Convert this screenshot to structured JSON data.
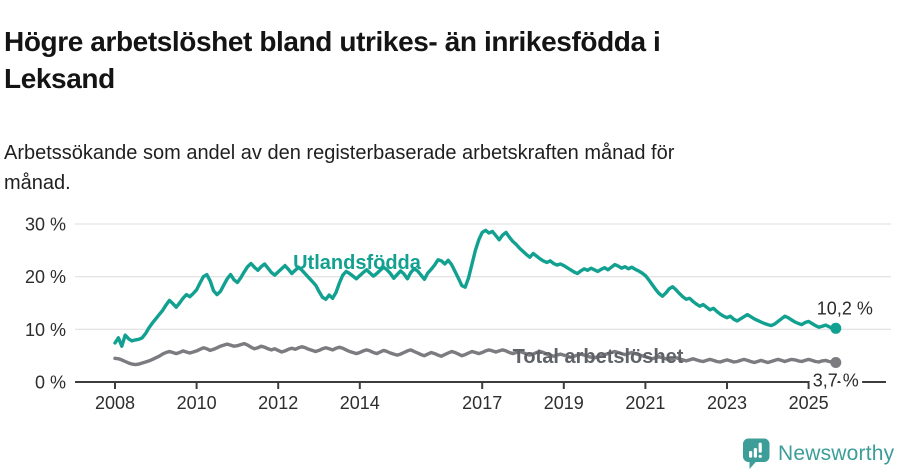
{
  "header": {
    "title_line1": "Högre arbetslöshet bland utrikes- än inrikesfödda i",
    "title_line2": "Leksand",
    "subtitle_line1": "Arbetssökande som andel av den registerbaserade arbetskraften månad för",
    "subtitle_line2": "månad."
  },
  "footer": {
    "brand": "Newsworthy",
    "logo_icon": "bar-chart-speech-bubble",
    "brand_color": "#3C9D99"
  },
  "colors": {
    "teal_series": "#12a190",
    "gray_series": "#7b7b80",
    "gray_label": "#5f6269",
    "grid": "#dcdcdc",
    "axis": "#3d3d3d",
    "text": "#141414"
  },
  "chart_data": {
    "type": "line",
    "title": "Högre arbetslöshet bland utrikes- än inrikesfödda i Leksand",
    "subtitle": "Arbetssökande som andel av den registerbaserade arbetskraften månad för månad.",
    "xlabel": "",
    "ylabel": "",
    "x_start_year": 2008,
    "interval_months": 1,
    "x_range": [
      2008.0,
      2025.67
    ],
    "ylim": [
      0,
      32
    ],
    "grid": "horizontal",
    "legend_position": "inline-labels",
    "x_ticks": [
      {
        "value": 2008,
        "label": "2008"
      },
      {
        "value": 2010,
        "label": "2010"
      },
      {
        "value": 2012,
        "label": "2012"
      },
      {
        "value": 2014,
        "label": "2014"
      },
      {
        "value": 2017,
        "label": "2017"
      },
      {
        "value": 2019,
        "label": "2019"
      },
      {
        "value": 2021,
        "label": "2021"
      },
      {
        "value": 2023,
        "label": "2023"
      },
      {
        "value": 2025,
        "label": "2025"
      }
    ],
    "y_ticks": [
      {
        "value": 0,
        "label": "0 %"
      },
      {
        "value": 10,
        "label": "10 %"
      },
      {
        "value": 20,
        "label": "20 %"
      },
      {
        "value": 30,
        "label": "30 %"
      }
    ],
    "series": [
      {
        "name": "Utlandsfödda",
        "color": "#12a190",
        "label_color": "#12a190",
        "end_label": "10,2 %",
        "end_value": 10.2,
        "values": [
          7.4,
          8.4,
          6.8,
          8.9,
          8.2,
          7.8,
          8.0,
          8.1,
          8.4,
          9.2,
          10.3,
          11.2,
          12.0,
          12.8,
          13.6,
          14.6,
          15.5,
          14.9,
          14.2,
          15.0,
          15.9,
          16.6,
          16.2,
          16.8,
          17.5,
          18.8,
          20.0,
          20.4,
          19.2,
          17.3,
          16.6,
          17.2,
          18.4,
          19.6,
          20.4,
          19.4,
          18.9,
          19.8,
          20.9,
          21.9,
          22.5,
          21.8,
          21.2,
          21.9,
          22.4,
          21.6,
          20.8,
          20.3,
          20.9,
          21.5,
          22.1,
          21.4,
          20.6,
          21.2,
          21.8,
          21.2,
          20.5,
          19.8,
          19.1,
          18.4,
          17.2,
          16.1,
          15.7,
          16.5,
          15.9,
          17.0,
          18.8,
          20.3,
          21.0,
          20.6,
          20.1,
          19.6,
          20.2,
          20.8,
          21.3,
          20.7,
          20.1,
          20.6,
          21.2,
          21.8,
          21.3,
          20.6,
          19.7,
          20.4,
          21.1,
          20.5,
          19.6,
          20.8,
          21.5,
          21.1,
          20.3,
          19.5,
          20.7,
          21.4,
          22.2,
          23.2,
          23.0,
          22.4,
          23.1,
          22.3,
          21.0,
          19.7,
          18.3,
          18.0,
          19.8,
          22.4,
          25.0,
          27.0,
          28.4,
          28.8,
          28.3,
          28.6,
          27.8,
          27.0,
          27.9,
          28.4,
          27.5,
          26.7,
          26.1,
          25.4,
          24.8,
          24.2,
          23.7,
          24.4,
          23.9,
          23.4,
          23.0,
          22.7,
          23.0,
          22.5,
          22.2,
          22.4,
          22.1,
          21.7,
          21.3,
          20.9,
          20.6,
          21.1,
          21.5,
          21.2,
          21.6,
          21.3,
          21.0,
          21.4,
          21.7,
          21.3,
          21.8,
          22.3,
          22.0,
          21.6,
          21.9,
          21.5,
          21.8,
          21.4,
          21.1,
          20.7,
          20.2,
          19.4,
          18.5,
          17.6,
          16.8,
          16.3,
          16.9,
          17.7,
          18.1,
          17.5,
          16.8,
          16.2,
          15.7,
          15.9,
          15.3,
          14.8,
          14.4,
          14.7,
          14.2,
          13.7,
          14.0,
          13.4,
          12.9,
          12.5,
          12.2,
          12.5,
          11.9,
          11.6,
          12.0,
          12.4,
          12.8,
          12.4,
          12.0,
          11.7,
          11.4,
          11.1,
          10.9,
          10.7,
          11.0,
          11.5,
          12.0,
          12.5,
          12.2,
          11.8,
          11.4,
          11.1,
          10.9,
          11.3,
          11.5,
          11.1,
          10.7,
          10.4,
          10.6,
          10.8,
          10.5,
          10.2,
          10.2
        ]
      },
      {
        "name": "Total arbetslöshet",
        "color": "#7b7b80",
        "label_color": "#5f6269",
        "end_label": "3,7 %",
        "end_value": 3.7,
        "values": [
          4.5,
          4.4,
          4.2,
          3.9,
          3.6,
          3.4,
          3.3,
          3.4,
          3.6,
          3.8,
          4.0,
          4.3,
          4.6,
          4.9,
          5.3,
          5.6,
          5.8,
          5.6,
          5.4,
          5.6,
          5.9,
          5.7,
          5.5,
          5.7,
          5.9,
          6.2,
          6.5,
          6.3,
          6.0,
          6.2,
          6.5,
          6.8,
          7.0,
          7.2,
          7.0,
          6.8,
          6.9,
          7.1,
          7.3,
          7.0,
          6.6,
          6.3,
          6.5,
          6.8,
          6.6,
          6.3,
          6.1,
          6.3,
          6.0,
          5.7,
          5.9,
          6.2,
          6.4,
          6.2,
          6.5,
          6.7,
          6.5,
          6.2,
          6.0,
          5.8,
          6.0,
          6.3,
          6.5,
          6.3,
          6.1,
          6.4,
          6.6,
          6.4,
          6.1,
          5.8,
          5.6,
          5.4,
          5.6,
          5.9,
          6.1,
          5.9,
          5.6,
          5.4,
          5.7,
          6.0,
          5.8,
          5.5,
          5.3,
          5.1,
          5.3,
          5.6,
          5.9,
          6.1,
          5.8,
          5.5,
          5.2,
          5.0,
          5.3,
          5.6,
          5.4,
          5.1,
          4.9,
          5.2,
          5.5,
          5.8,
          5.6,
          5.3,
          5.0,
          5.2,
          5.5,
          5.8,
          5.6,
          5.4,
          5.6,
          5.9,
          6.1,
          5.9,
          5.7,
          5.9,
          6.1,
          5.9,
          5.6,
          5.4,
          5.6,
          5.8,
          5.6,
          5.3,
          5.1,
          5.3,
          5.6,
          5.8,
          5.6,
          5.3,
          5.1,
          4.9,
          5.1,
          5.3,
          5.1,
          4.9,
          4.7,
          4.9,
          5.1,
          5.3,
          5.1,
          4.9,
          4.7,
          4.6,
          4.8,
          5.0,
          5.2,
          5.4,
          5.6,
          5.8,
          5.6,
          5.4,
          5.2,
          5.4,
          5.6,
          5.4,
          5.2,
          5.0,
          4.8,
          4.6,
          4.4,
          4.6,
          4.8,
          4.6,
          4.4,
          4.2,
          4.4,
          4.6,
          4.4,
          4.2,
          4.0,
          4.2,
          4.4,
          4.2,
          4.0,
          3.9,
          4.1,
          4.3,
          4.1,
          3.9,
          3.8,
          4.0,
          4.2,
          4.0,
          3.8,
          3.9,
          4.1,
          4.3,
          4.1,
          3.9,
          3.7,
          3.9,
          4.1,
          3.9,
          3.7,
          3.9,
          4.1,
          4.3,
          4.1,
          3.9,
          4.1,
          4.3,
          4.2,
          4.0,
          3.9,
          4.1,
          4.3,
          4.1,
          3.9,
          3.8,
          4.0,
          4.1,
          3.9,
          3.8,
          3.7
        ]
      }
    ]
  }
}
